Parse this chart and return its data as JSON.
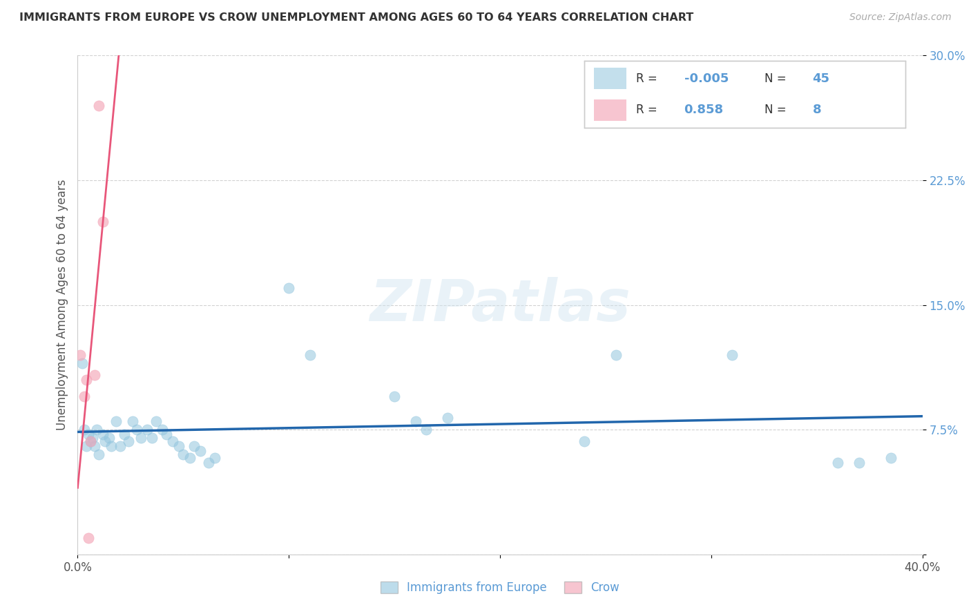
{
  "title": "IMMIGRANTS FROM EUROPE VS CROW UNEMPLOYMENT AMONG AGES 60 TO 64 YEARS CORRELATION CHART",
  "source": "Source: ZipAtlas.com",
  "ylabel": "Unemployment Among Ages 60 to 64 years",
  "xlim": [
    0.0,
    0.4
  ],
  "ylim": [
    0.0,
    0.3
  ],
  "legend_r1": "-0.005",
  "legend_n1": "45",
  "legend_r2": "0.858",
  "legend_n2": "8",
  "watermark": "ZIPatlas",
  "blue_color": "#92c5de",
  "pink_color": "#f4a6b8",
  "trendline_blue_color": "#2166ac",
  "trendline_pink_color": "#e8567a",
  "label_color": "#5b9bd5",
  "blue_scatter": [
    [
      0.002,
      0.115
    ],
    [
      0.003,
      0.075
    ],
    [
      0.004,
      0.065
    ],
    [
      0.005,
      0.072
    ],
    [
      0.006,
      0.068
    ],
    [
      0.007,
      0.07
    ],
    [
      0.008,
      0.065
    ],
    [
      0.009,
      0.075
    ],
    [
      0.01,
      0.06
    ],
    [
      0.012,
      0.072
    ],
    [
      0.013,
      0.068
    ],
    [
      0.015,
      0.07
    ],
    [
      0.016,
      0.065
    ],
    [
      0.018,
      0.08
    ],
    [
      0.02,
      0.065
    ],
    [
      0.022,
      0.072
    ],
    [
      0.024,
      0.068
    ],
    [
      0.026,
      0.08
    ],
    [
      0.028,
      0.075
    ],
    [
      0.03,
      0.07
    ],
    [
      0.033,
      0.075
    ],
    [
      0.035,
      0.07
    ],
    [
      0.037,
      0.08
    ],
    [
      0.04,
      0.075
    ],
    [
      0.042,
      0.072
    ],
    [
      0.045,
      0.068
    ],
    [
      0.048,
      0.065
    ],
    [
      0.05,
      0.06
    ],
    [
      0.053,
      0.058
    ],
    [
      0.055,
      0.065
    ],
    [
      0.058,
      0.062
    ],
    [
      0.062,
      0.055
    ],
    [
      0.065,
      0.058
    ],
    [
      0.1,
      0.16
    ],
    [
      0.11,
      0.12
    ],
    [
      0.15,
      0.095
    ],
    [
      0.16,
      0.08
    ],
    [
      0.165,
      0.075
    ],
    [
      0.175,
      0.082
    ],
    [
      0.24,
      0.068
    ],
    [
      0.255,
      0.12
    ],
    [
      0.31,
      0.12
    ],
    [
      0.36,
      0.055
    ],
    [
      0.37,
      0.055
    ],
    [
      0.385,
      0.058
    ]
  ],
  "pink_scatter": [
    [
      0.001,
      0.12
    ],
    [
      0.003,
      0.095
    ],
    [
      0.004,
      0.105
    ],
    [
      0.005,
      0.01
    ],
    [
      0.006,
      0.068
    ],
    [
      0.008,
      0.108
    ],
    [
      0.01,
      0.27
    ],
    [
      0.012,
      0.2
    ]
  ],
  "dot_size": 120
}
